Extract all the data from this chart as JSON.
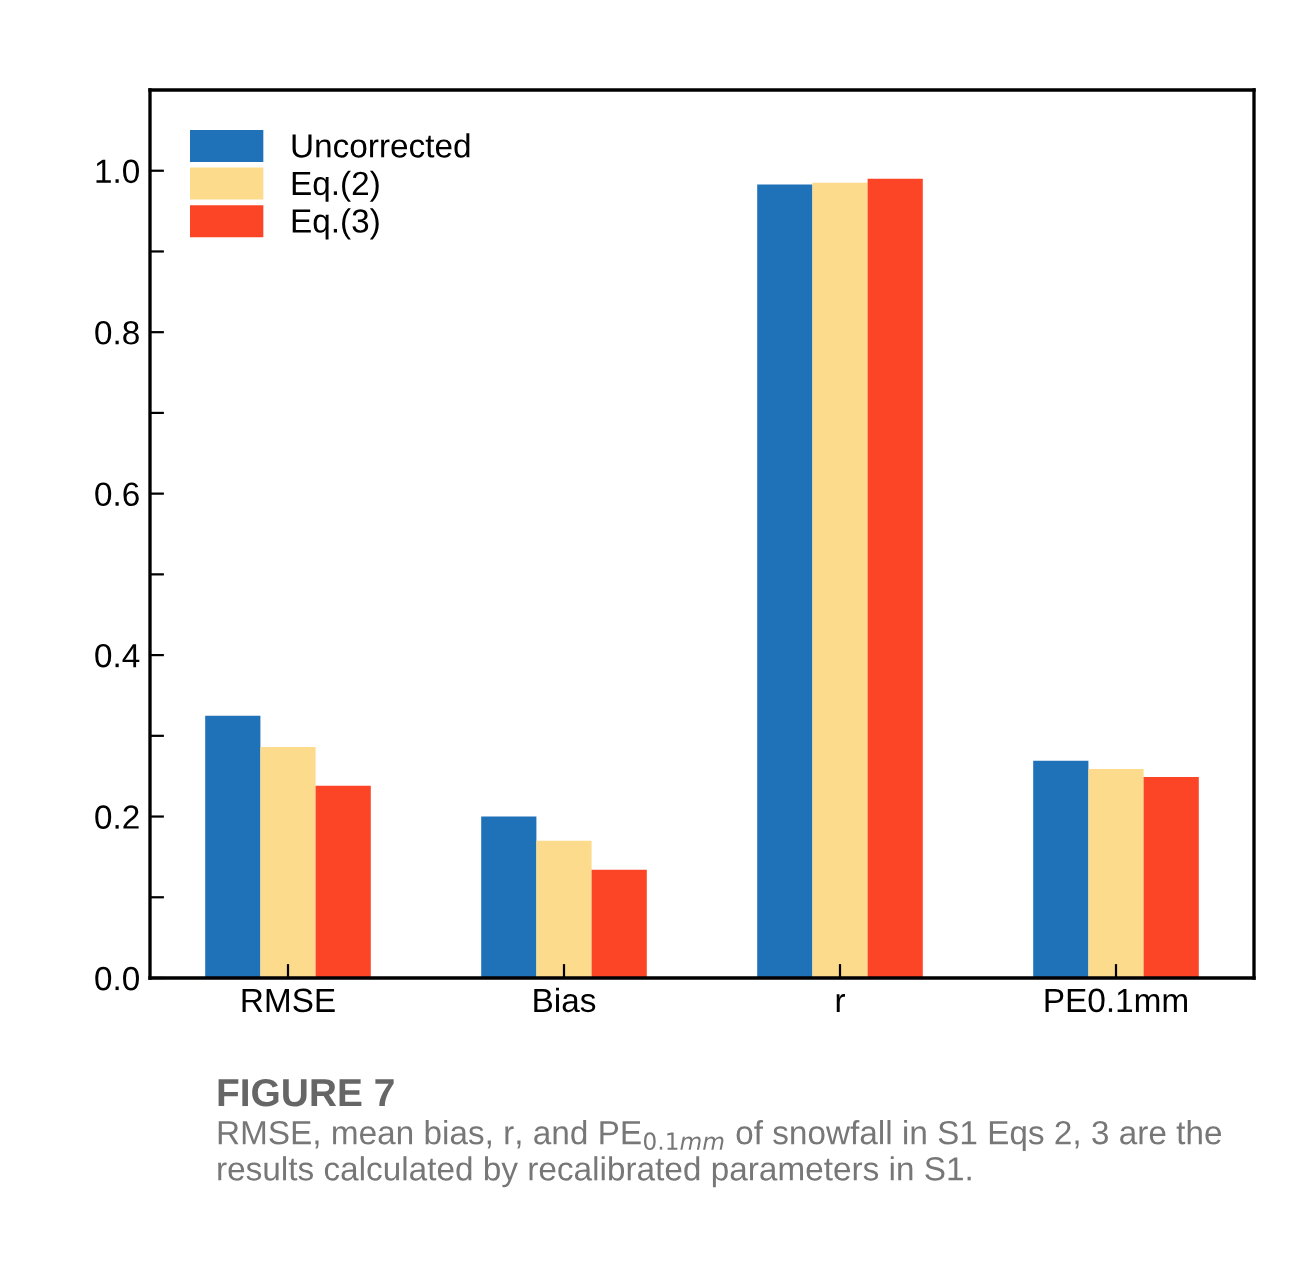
{
  "chart_data": {
    "type": "bar",
    "title": "FIGURE 7",
    "categories": [
      "RMSE",
      "Bias",
      "r",
      "PE0.1mm"
    ],
    "series": [
      {
        "name": "Uncorrected",
        "color": "#1f71b8",
        "values": [
          0.325,
          0.2,
          0.983,
          0.269
        ]
      },
      {
        "name": "Eq.(2)",
        "color": "#fddb8c",
        "values": [
          0.286,
          0.17,
          0.985,
          0.259
        ]
      },
      {
        "name": "Eq.(3)",
        "color": "#fc4526",
        "values": [
          0.238,
          0.134,
          0.99,
          0.249
        ]
      }
    ],
    "ylim": [
      0,
      1.1
    ],
    "yticks": [
      {
        "value": 0.0,
        "label": "0.0"
      },
      {
        "value": 0.1,
        "label": null
      },
      {
        "value": 0.2,
        "label": "0.2"
      },
      {
        "value": 0.3,
        "label": null
      },
      {
        "value": 0.4,
        "label": "0.4"
      },
      {
        "value": 0.5,
        "label": null
      },
      {
        "value": 0.6,
        "label": "0.6"
      },
      {
        "value": 0.7,
        "label": null
      },
      {
        "value": 0.8,
        "label": "0.8"
      },
      {
        "value": 0.9,
        "label": null
      },
      {
        "value": 1.0,
        "label": "1.0"
      }
    ],
    "legend": "top left",
    "grid": false,
    "annotations": [
      "RMSE, mean bias, r, and PE$_{0.1mm}$ of snowfall in S1 Eqs 2, 3 are the results calculated by recalibrated parameters in S1."
    ]
  }
}
